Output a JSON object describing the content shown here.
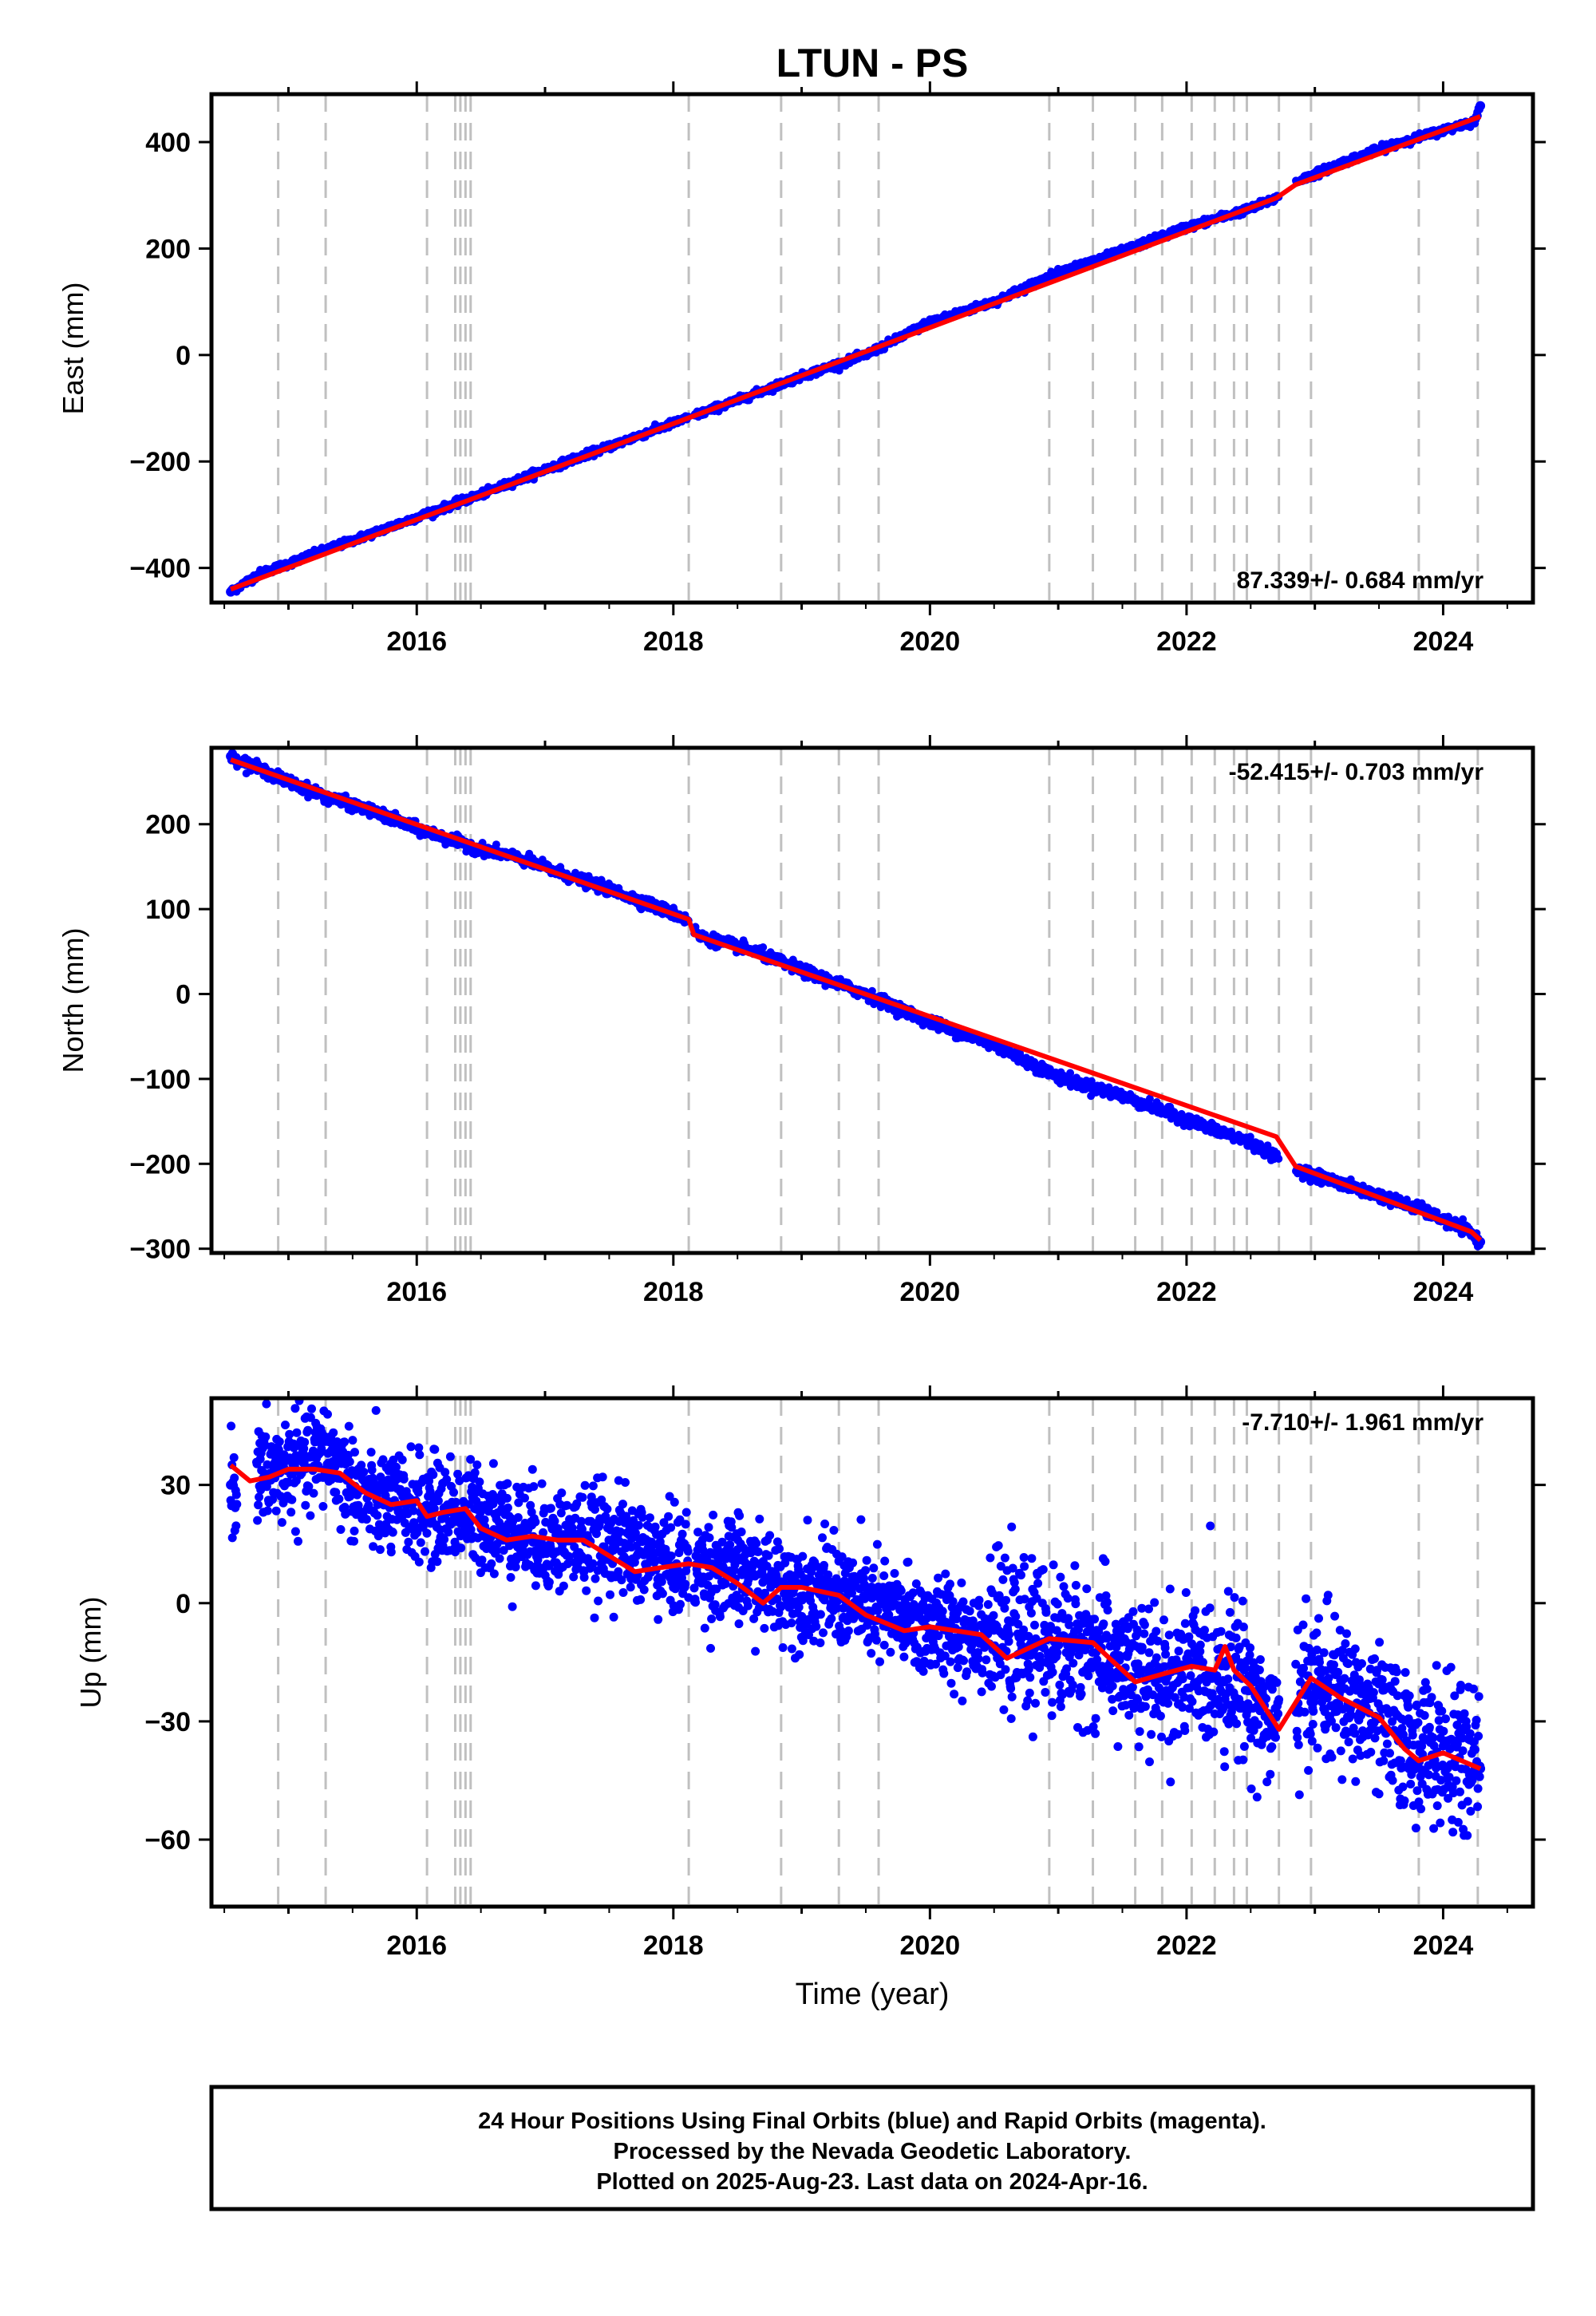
{
  "figure": {
    "title": "LTUN - PS",
    "footer_lines": [
      "24 Hour Positions Using Final Orbits (blue) and Rapid Orbits (magenta).",
      "Processed by the Nevada Geodetic Laboratory.",
      "Plotted on 2025-Aug-23. Last data on 2024-Apr-16."
    ],
    "colors": {
      "final_orbits": "#0000ff",
      "fit_line": "#ff0000",
      "event_lines": "#c0c0c0",
      "axes": "#000000"
    }
  },
  "chart_data": [
    {
      "type": "scatter",
      "panel": "east",
      "ylabel": "East (mm)",
      "xlabel": "",
      "xlim": [
        2014.4,
        2024.7
      ],
      "ylim": [
        -465,
        490
      ],
      "xticks": [
        2016,
        2018,
        2020,
        2022,
        2024
      ],
      "yticks": [
        -400,
        -200,
        0,
        200,
        400
      ],
      "rate_label": "87.339+/- 0.684 mm/yr",
      "rate_label_position": "bottom-right",
      "event_lines": [
        2014.92,
        2015.29,
        2016.08,
        2016.3,
        2016.34,
        2016.38,
        2016.42,
        2018.12,
        2018.84,
        2019.29,
        2019.6,
        2020.93,
        2021.27,
        2021.6,
        2021.81,
        2022.04,
        2022.22,
        2022.37,
        2022.47,
        2022.72,
        2022.97,
        2023.81,
        2024.27
      ],
      "trend": {
        "x": [
          2014.55,
          2022.7,
          2022.85,
          2024.29
        ],
        "y": [
          -440,
          295,
          320,
          448
        ]
      },
      "series": [
        {
          "x": [
            2014.55,
            2014.78,
            2015.0,
            2015.3,
            2015.6,
            2016.0,
            2016.5,
            2017.0,
            2017.5,
            2018.0,
            2018.5,
            2019.0,
            2019.5,
            2020.0,
            2020.5,
            2021.0,
            2021.5,
            2022.0,
            2022.5,
            2022.7,
            2022.85,
            2023.2,
            2023.6,
            2024.0,
            2024.25,
            2024.29
          ],
          "y": [
            -445,
            -410,
            -392,
            -365,
            -340,
            -305,
            -262,
            -215,
            -172,
            -128,
            -85,
            -40,
            0,
            62,
            100,
            155,
            195,
            240,
            275,
            295,
            325,
            360,
            395,
            422,
            440,
            468
          ]
        }
      ]
    },
    {
      "type": "scatter",
      "panel": "north",
      "ylabel": "North (mm)",
      "xlabel": "",
      "xlim": [
        2014.4,
        2024.7
      ],
      "ylim": [
        -305,
        290
      ],
      "xticks": [
        2016,
        2018,
        2020,
        2022,
        2024
      ],
      "yticks": [
        -300,
        -200,
        -100,
        0,
        100,
        200
      ],
      "rate_label": "-52.415+/- 0.703 mm/yr",
      "rate_label_position": "top-right",
      "event_lines": [
        2014.92,
        2015.29,
        2016.08,
        2016.3,
        2016.34,
        2016.38,
        2016.42,
        2018.12,
        2018.84,
        2019.29,
        2019.6,
        2020.93,
        2021.27,
        2021.6,
        2021.81,
        2022.04,
        2022.22,
        2022.37,
        2022.47,
        2022.72,
        2022.97,
        2023.81,
        2024.27
      ],
      "trend": {
        "x": [
          2014.55,
          2018.12,
          2018.16,
          2022.7,
          2022.85,
          2024.22,
          2024.29
        ],
        "y": [
          276,
          88,
          70,
          -168,
          -203,
          -280,
          -290
        ]
      },
      "series": [
        {
          "x": [
            2014.55,
            2015.0,
            2015.3,
            2015.6,
            2016.0,
            2016.4,
            2016.8,
            2017.2,
            2017.6,
            2018.0,
            2018.12,
            2018.2,
            2018.6,
            2019.0,
            2019.5,
            2020.0,
            2020.5,
            2021.0,
            2021.5,
            2022.0,
            2022.5,
            2022.85,
            2023.3,
            2023.8,
            2024.2,
            2024.29
          ],
          "y": [
            280,
            250,
            232,
            218,
            195,
            175,
            160,
            138,
            118,
            95,
            86,
            68,
            52,
            28,
            0,
            -33,
            -60,
            -98,
            -120,
            -148,
            -175,
            -206,
            -228,
            -252,
            -280,
            -292
          ]
        }
      ]
    },
    {
      "type": "scatter",
      "panel": "up",
      "ylabel": "Up (mm)",
      "xlabel": "Time (year)",
      "xlim": [
        2014.4,
        2024.7
      ],
      "ylim": [
        -77,
        52
      ],
      "xticks": [
        2016,
        2018,
        2020,
        2022,
        2024
      ],
      "yticks": [
        -60,
        -30,
        0,
        30
      ],
      "rate_label": "-7.710+/- 1.961 mm/yr",
      "rate_label_position": "top-right",
      "event_lines": [
        2014.92,
        2015.29,
        2016.08,
        2016.3,
        2016.34,
        2016.38,
        2016.42,
        2018.12,
        2018.84,
        2019.29,
        2019.6,
        2020.93,
        2021.27,
        2021.6,
        2021.81,
        2022.04,
        2022.22,
        2022.37,
        2022.47,
        2022.72,
        2022.97,
        2023.81,
        2024.27
      ],
      "trend": {
        "x": [
          2014.55,
          2014.7,
          2014.85,
          2015.0,
          2015.2,
          2015.4,
          2015.6,
          2015.8,
          2016.0,
          2016.08,
          2016.2,
          2016.38,
          2016.5,
          2016.7,
          2016.9,
          2017.1,
          2017.3,
          2017.5,
          2017.7,
          2017.9,
          2018.12,
          2018.3,
          2018.5,
          2018.7,
          2018.84,
          2019.0,
          2019.29,
          2019.5,
          2019.8,
          2020.0,
          2020.4,
          2020.6,
          2020.93,
          2021.27,
          2021.4,
          2021.6,
          2021.81,
          2022.04,
          2022.22,
          2022.3,
          2022.37,
          2022.5,
          2022.6,
          2022.72,
          2022.97,
          2023.2,
          2023.5,
          2023.7,
          2023.81,
          2024.0,
          2024.29
        ],
        "y": [
          35,
          31,
          32,
          34,
          34,
          33,
          28,
          25,
          26,
          22,
          23,
          24,
          19,
          16,
          17,
          16,
          16,
          12,
          8,
          9,
          10,
          9,
          5,
          0,
          4,
          4,
          2,
          -3,
          -7,
          -6,
          -8,
          -14,
          -9,
          -10,
          -14,
          -20,
          -18,
          -16,
          -17,
          -11,
          -17,
          -21,
          -26,
          -32,
          -19,
          -24,
          -29,
          -37,
          -40,
          -38,
          -42
        ]
      },
      "series": [
        {
          "x": [
            2014.55,
            2014.8,
            2015.0,
            2015.3,
            2015.6,
            2016.0,
            2016.5,
            2017.0,
            2017.5,
            2018.0,
            2018.5,
            2018.84,
            2019.2,
            2019.6,
            2020.0,
            2020.5,
            2020.93,
            2021.3,
            2021.7,
            2022.0,
            2022.4,
            2022.7,
            2022.97,
            2023.3,
            2023.7,
            2024.0,
            2024.29
          ],
          "y": [
            30,
            32,
            34,
            38,
            26,
            24,
            22,
            16,
            16,
            10,
            8,
            4,
            3,
            -2,
            -6,
            -8,
            -10,
            -12,
            -20,
            -18,
            -18,
            -32,
            -20,
            -25,
            -35,
            -38,
            -42
          ]
        }
      ]
    }
  ]
}
